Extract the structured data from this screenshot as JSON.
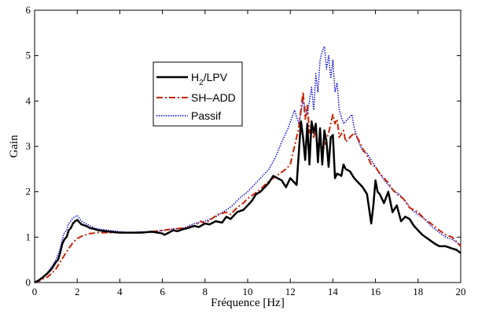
{
  "chart_data": {
    "type": "line",
    "title": "",
    "xlabel": "Fréquence [Hz]",
    "ylabel": "Gain",
    "xlim": [
      0,
      20
    ],
    "ylim": [
      0,
      6
    ],
    "xticks": [
      "0",
      "2",
      "4",
      "6",
      "8",
      "10",
      "12",
      "14",
      "16",
      "18",
      "20"
    ],
    "yticks": [
      "0",
      "1",
      "2",
      "3",
      "4",
      "5",
      "6"
    ],
    "grid": false,
    "legend_position": "upper-left-center",
    "legend": {
      "lpv_main": "H",
      "lpv_sub": "2",
      "lpv_rest": "/LPV",
      "shadd": "SH–ADD",
      "passif": "Passif"
    },
    "series": [
      {
        "name": "H2/LPV",
        "color": "#000000",
        "style": "solid",
        "x": [
          0,
          0.2,
          0.4,
          0.6,
          0.8,
          1.0,
          1.1,
          1.2,
          1.3,
          1.4,
          1.5,
          1.6,
          1.7,
          1.8,
          1.9,
          2.0,
          2.1,
          2.2,
          2.4,
          2.6,
          2.8,
          3.0,
          3.5,
          4.0,
          4.5,
          5.0,
          5.5,
          6.0,
          6.1,
          6.3,
          6.5,
          6.7,
          7.0,
          7.2,
          7.5,
          7.7,
          8.0,
          8.2,
          8.5,
          8.8,
          9.0,
          9.2,
          9.5,
          9.8,
          10.0,
          10.2,
          10.4,
          10.6,
          10.8,
          11.0,
          11.2,
          11.4,
          11.6,
          11.8,
          12.0,
          12.2,
          12.3,
          12.5,
          12.6,
          12.7,
          12.8,
          12.9,
          13.0,
          13.1,
          13.2,
          13.3,
          13.4,
          13.5,
          13.6,
          13.7,
          13.8,
          13.9,
          14.0,
          14.1,
          14.2,
          14.4,
          14.5,
          14.6,
          14.8,
          15.0,
          15.2,
          15.4,
          15.6,
          15.8,
          15.9,
          16.0,
          16.1,
          16.2,
          16.4,
          16.6,
          16.8,
          17.0,
          17.2,
          17.4,
          17.6,
          17.8,
          18.0,
          18.2,
          18.5,
          18.8,
          19.0,
          19.3,
          19.6,
          19.8,
          20.0
        ],
        "y": [
          0.0,
          0.05,
          0.12,
          0.2,
          0.3,
          0.45,
          0.5,
          0.65,
          0.85,
          0.95,
          1.0,
          1.15,
          1.2,
          1.3,
          1.35,
          1.38,
          1.33,
          1.28,
          1.25,
          1.2,
          1.18,
          1.15,
          1.12,
          1.1,
          1.1,
          1.1,
          1.12,
          1.08,
          1.05,
          1.1,
          1.15,
          1.13,
          1.18,
          1.2,
          1.25,
          1.22,
          1.3,
          1.28,
          1.35,
          1.32,
          1.45,
          1.4,
          1.55,
          1.6,
          1.7,
          1.8,
          1.95,
          2.0,
          2.1,
          2.2,
          2.35,
          2.3,
          2.25,
          2.1,
          2.3,
          2.2,
          2.15,
          3.55,
          3.2,
          2.7,
          3.5,
          2.6,
          3.55,
          3.3,
          3.5,
          2.65,
          3.4,
          2.6,
          3.35,
          3.1,
          2.55,
          3.2,
          3.25,
          2.3,
          2.4,
          2.35,
          2.6,
          2.5,
          2.45,
          2.3,
          2.2,
          2.1,
          1.95,
          1.3,
          1.7,
          2.25,
          2.0,
          1.95,
          1.75,
          2.0,
          1.55,
          1.7,
          1.35,
          1.45,
          1.4,
          1.25,
          1.15,
          1.05,
          0.95,
          0.85,
          0.8,
          0.8,
          0.75,
          0.72,
          0.65
        ]
      },
      {
        "name": "SH–ADD",
        "color": "#cc2200",
        "style": "dashdot",
        "x": [
          0,
          0.2,
          0.4,
          0.6,
          0.8,
          1.0,
          1.2,
          1.4,
          1.6,
          1.8,
          2.0,
          2.2,
          2.4,
          2.6,
          3.0,
          3.5,
          4.0,
          4.5,
          5.0,
          5.5,
          6.0,
          6.5,
          7.0,
          7.5,
          7.8,
          8.0,
          8.3,
          8.6,
          9.0,
          9.2,
          9.5,
          9.8,
          10.0,
          10.3,
          10.6,
          10.9,
          11.2,
          11.5,
          11.8,
          12.0,
          12.2,
          12.4,
          12.6,
          12.7,
          12.8,
          12.9,
          13.0,
          13.1,
          13.2,
          13.3,
          13.4,
          13.5,
          13.6,
          13.8,
          14.0,
          14.1,
          14.2,
          14.3,
          14.5,
          14.6,
          14.8,
          15.0,
          15.2,
          15.4,
          15.6,
          15.8,
          16.0,
          16.2,
          16.4,
          16.6,
          16.8,
          17.0,
          17.3,
          17.6,
          18.0,
          18.3,
          18.6,
          19.0,
          19.3,
          19.6,
          20.0
        ],
        "y": [
          0.0,
          0.03,
          0.08,
          0.12,
          0.2,
          0.3,
          0.45,
          0.6,
          0.75,
          0.88,
          0.97,
          1.02,
          1.05,
          1.08,
          1.1,
          1.1,
          1.1,
          1.1,
          1.1,
          1.12,
          1.15,
          1.18,
          1.2,
          1.25,
          1.35,
          1.3,
          1.4,
          1.5,
          1.55,
          1.5,
          1.65,
          1.75,
          1.85,
          1.95,
          2.05,
          2.2,
          2.3,
          2.4,
          2.5,
          2.6,
          3.0,
          3.4,
          4.2,
          3.6,
          3.9,
          3.3,
          3.5,
          3.2,
          3.4,
          3.0,
          3.1,
          2.9,
          3.0,
          3.3,
          3.7,
          3.5,
          3.6,
          3.2,
          3.35,
          3.1,
          3.2,
          3.3,
          3.15,
          2.95,
          2.8,
          2.6,
          2.55,
          2.4,
          2.3,
          2.2,
          2.05,
          1.95,
          1.85,
          1.65,
          1.55,
          1.4,
          1.3,
          1.15,
          1.05,
          1.0,
          0.8
        ]
      },
      {
        "name": "Passif",
        "color": "#0000dd",
        "style": "dotted",
        "x": [
          0,
          0.2,
          0.4,
          0.6,
          0.8,
          1.0,
          1.2,
          1.3,
          1.4,
          1.5,
          1.6,
          1.7,
          1.8,
          1.9,
          2.0,
          2.1,
          2.2,
          2.4,
          2.6,
          2.8,
          3.0,
          3.5,
          4.0,
          4.5,
          5.0,
          5.5,
          6.0,
          6.5,
          7.0,
          7.5,
          8.0,
          8.5,
          9.0,
          9.3,
          9.6,
          10.0,
          10.3,
          10.6,
          11.0,
          11.3,
          11.6,
          11.9,
          12.2,
          12.4,
          12.6,
          12.8,
          13.0,
          13.1,
          13.2,
          13.3,
          13.4,
          13.5,
          13.6,
          13.7,
          13.8,
          13.9,
          14.0,
          14.1,
          14.2,
          14.3,
          14.5,
          14.7,
          14.9,
          15.0,
          15.2,
          15.4,
          15.6,
          15.8,
          16.0,
          16.2,
          16.5,
          16.8,
          17.1,
          17.4,
          17.7,
          18.0,
          18.3,
          18.6,
          19.0,
          19.3,
          19.6,
          20.0
        ],
        "y": [
          0.0,
          0.05,
          0.12,
          0.22,
          0.35,
          0.5,
          0.75,
          0.95,
          1.1,
          1.15,
          1.3,
          1.35,
          1.42,
          1.45,
          1.48,
          1.42,
          1.35,
          1.3,
          1.25,
          1.2,
          1.18,
          1.15,
          1.12,
          1.1,
          1.12,
          1.1,
          1.15,
          1.18,
          1.2,
          1.3,
          1.35,
          1.45,
          1.6,
          1.7,
          1.85,
          2.0,
          2.15,
          2.3,
          2.5,
          2.75,
          3.1,
          3.4,
          3.8,
          3.5,
          4.0,
          3.7,
          4.3,
          3.8,
          4.6,
          4.2,
          4.9,
          5.1,
          5.2,
          4.7,
          5.0,
          4.5,
          4.9,
          4.2,
          4.4,
          3.8,
          3.5,
          3.6,
          3.7,
          3.4,
          3.1,
          2.9,
          2.85,
          2.7,
          2.55,
          2.4,
          2.2,
          2.05,
          1.95,
          1.8,
          1.6,
          1.5,
          1.4,
          1.25,
          1.1,
          1.0,
          0.95,
          0.82
        ]
      }
    ]
  }
}
